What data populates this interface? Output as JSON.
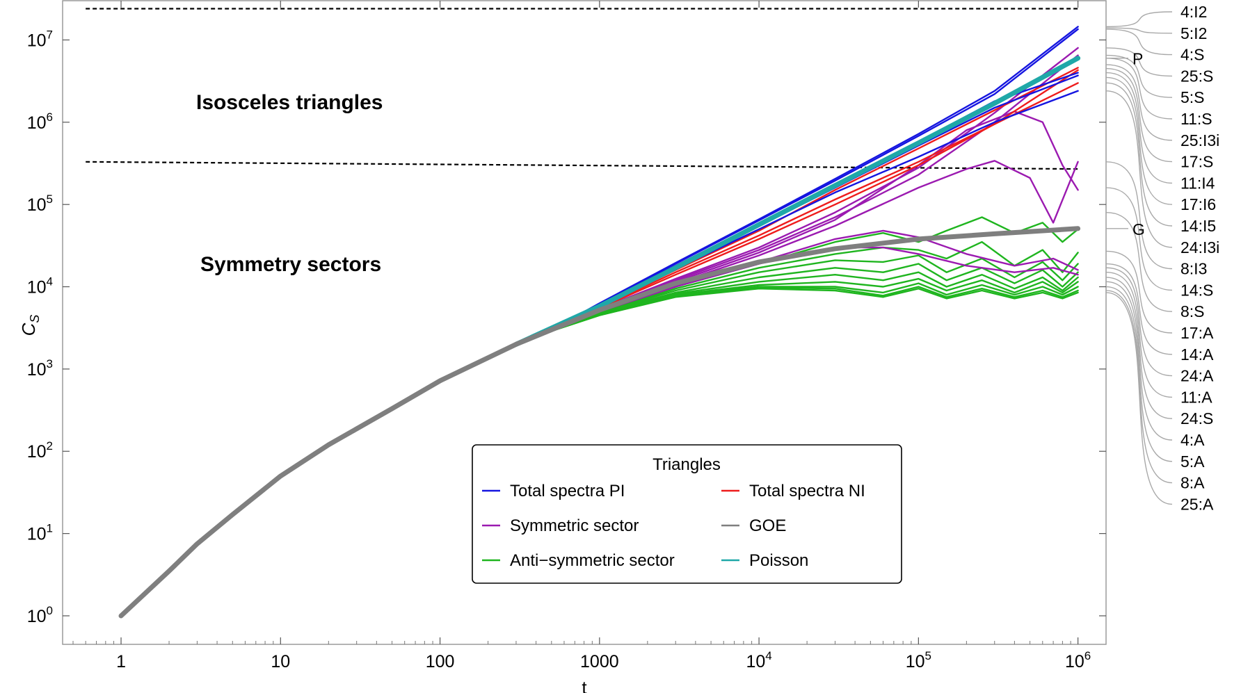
{
  "chart_data": {
    "type": "line",
    "x_scale": "log",
    "y_scale": "log",
    "xlim": [
      0.43,
      1500000
    ],
    "ylim": [
      0.45,
      30000000
    ],
    "xlabel": "t",
    "ylabel": "C",
    "ylabel_subscript": "S",
    "x_ticks": [
      {
        "value": 1,
        "base": "1",
        "sup": ""
      },
      {
        "value": 10,
        "base": "10",
        "sup": ""
      },
      {
        "value": 100,
        "base": "100",
        "sup": ""
      },
      {
        "value": 1000,
        "base": "1000",
        "sup": ""
      },
      {
        "value": 10000,
        "base": "10",
        "sup": "4"
      },
      {
        "value": 100000,
        "base": "10",
        "sup": "5"
      },
      {
        "value": 1000000,
        "base": "10",
        "sup": "6"
      }
    ],
    "y_ticks": [
      {
        "value": 1,
        "base": "10",
        "sup": "0"
      },
      {
        "value": 10,
        "base": "10",
        "sup": "1"
      },
      {
        "value": 100,
        "base": "10",
        "sup": "2"
      },
      {
        "value": 1000,
        "base": "10",
        "sup": "3"
      },
      {
        "value": 10000,
        "base": "10",
        "sup": "4"
      },
      {
        "value": 100000,
        "base": "10",
        "sup": "5"
      },
      {
        "value": 1000000,
        "base": "10",
        "sup": "6"
      },
      {
        "value": 10000000,
        "base": "10",
        "sup": "7"
      }
    ],
    "reference_lines": [
      {
        "y": 24000000,
        "x_from": 0.6,
        "x_to": 1000000,
        "style": "dashed"
      },
      {
        "y": 330000,
        "x_from": 0.6,
        "x_to": 1000000,
        "y_end": 270000,
        "style": "dashed"
      }
    ],
    "region_labels": [
      {
        "text": "Isosceles triangles",
        "x": 0.0,
        "y": 0
      },
      {
        "text": "Symmetry sectors",
        "x": 0.0,
        "y": 0
      }
    ],
    "legend": {
      "title": "Triangles",
      "position": "bottom-center",
      "entries": [
        {
          "label": "Total spectra PI",
          "color": "#1515e0"
        },
        {
          "label": "Total spectra NI",
          "color": "#ee1c1c"
        },
        {
          "label": "Symmetric sector",
          "color": "#9b1ab0"
        },
        {
          "label": "GOE",
          "color": "#7f7f7f"
        },
        {
          "label": "Anti−symmetric sector",
          "color": "#1fb51f"
        },
        {
          "label": "Poisson",
          "color": "#1fa8a8"
        }
      ]
    },
    "series": [
      {
        "group": "GOE",
        "color": "#7f7f7f",
        "width": 7,
        "x": [
          1,
          2,
          3,
          5,
          10,
          20,
          50,
          100,
          300,
          1000,
          3000,
          10000,
          30000,
          100000,
          300000,
          1000000
        ],
        "y": [
          1,
          3.5,
          7.5,
          17,
          50,
          120,
          330,
          720,
          2000,
          5200,
          11000,
          20000,
          29000,
          38000,
          44000,
          51000
        ]
      },
      {
        "group": "Poisson",
        "color": "#1fa8a8",
        "width": 7,
        "x": [
          300,
          1000,
          3000,
          10000,
          30000,
          100000,
          300000,
          1000000
        ],
        "y": [
          2000,
          5800,
          17000,
          57000,
          170000,
          560000,
          1700000,
          6000000
        ]
      },
      {
        "group": "Total spectra PI",
        "label": "4:I2",
        "color": "#1515e0",
        "x": [
          500,
          1000,
          3000,
          10000,
          30000,
          100000,
          300000,
          1000000
        ],
        "y": [
          3000,
          6300,
          19500,
          66000,
          205000,
          720000,
          2400000,
          14500000
        ]
      },
      {
        "group": "Total spectra PI",
        "label": "5:I2",
        "color": "#1515e0",
        "x": [
          500,
          1000,
          3000,
          10000,
          30000,
          100000,
          300000,
          1000000
        ],
        "y": [
          3000,
          6200,
          19000,
          64000,
          195000,
          680000,
          2200000,
          13500000
        ]
      },
      {
        "group": "Total spectra PI",
        "label": "4:S",
        "color": "#1515e0",
        "x": [
          500,
          1000,
          3000,
          10000,
          30000,
          100000,
          300000,
          1000000
        ],
        "y": [
          3000,
          6100,
          18000,
          59000,
          175000,
          580000,
          1800000,
          4000000
        ]
      },
      {
        "group": "Total spectra PI",
        "label": "5:S",
        "color": "#1515e0",
        "x": [
          500,
          1000,
          3000,
          10000,
          30000,
          100000,
          300000,
          1000000
        ],
        "y": [
          3000,
          6000,
          17000,
          55000,
          160000,
          520000,
          1500000,
          3700000
        ]
      },
      {
        "group": "Total spectra PI",
        "label": "11:S",
        "color": "#1515e0",
        "x": [
          500,
          1000,
          3000,
          10000,
          30000,
          100000,
          300000,
          1000000
        ],
        "y": [
          2900,
          5800,
          16500,
          50000,
          140000,
          380000,
          1000000,
          2400000
        ]
      },
      {
        "group": "Total spectra NI",
        "label": "25:I3i",
        "color": "#ee1c1c",
        "x": [
          500,
          1000,
          3000,
          10000,
          30000,
          100000,
          300000,
          1000000
        ],
        "y": [
          2900,
          5700,
          16000,
          48000,
          150000,
          480000,
          1400000,
          4600000
        ]
      },
      {
        "group": "Total spectra NI",
        "label": "17:S",
        "color": "#ee1c1c",
        "x": [
          500,
          1000,
          3000,
          10000,
          30000,
          100000,
          300000,
          1000000
        ],
        "y": [
          2900,
          5600,
          15000,
          42000,
          115000,
          330000,
          950000,
          4300000
        ]
      },
      {
        "group": "Total spectra NI",
        "label": "11:I4",
        "color": "#ee1c1c",
        "x": [
          500,
          1000,
          3000,
          10000,
          30000,
          100000,
          300000,
          1000000
        ],
        "y": [
          2900,
          5500,
          14000,
          38000,
          100000,
          300000,
          950000,
          3000000
        ]
      },
      {
        "group": "Symmetric sector",
        "label": "17:I6",
        "color": "#9b1ab0",
        "x": [
          500,
          1000,
          3000,
          10000,
          30000,
          100000,
          300000,
          1000000
        ],
        "y": [
          2900,
          5400,
          12500,
          30000,
          80000,
          280000,
          1300000,
          8000000
        ]
      },
      {
        "group": "Symmetric sector",
        "label": "14:I5",
        "color": "#9b1ab0",
        "x": [
          500,
          1000,
          3000,
          10000,
          30000,
          100000,
          300000,
          1000000
        ],
        "y": [
          2900,
          5300,
          12000,
          28000,
          70000,
          230000,
          1000000,
          6500000
        ]
      },
      {
        "group": "Symmetric sector",
        "label": "24:I3i",
        "color": "#9b1ab0",
        "x": [
          500,
          1000,
          3000,
          10000,
          30000,
          100000,
          200000,
          400000,
          600000,
          800000,
          1000000
        ],
        "y": [
          2900,
          5200,
          11500,
          26000,
          65000,
          300000,
          800000,
          1350000,
          1000000,
          300000,
          150000
        ]
      },
      {
        "group": "Symmetric sector",
        "label": "8:I3",
        "color": "#9b1ab0",
        "x": [
          500,
          1000,
          3000,
          10000,
          30000,
          100000,
          200000,
          300000,
          500000,
          700000,
          1000000
        ],
        "y": [
          2900,
          5100,
          11000,
          24000,
          55000,
          160000,
          270000,
          340000,
          210000,
          60000,
          330000
        ]
      },
      {
        "group": "Symmetric sector",
        "label": "14:S",
        "color": "#9b1ab0",
        "x": [
          500,
          1000,
          3000,
          10000,
          30000,
          60000,
          100000,
          200000,
          400000,
          700000,
          1000000
        ],
        "y": [
          2900,
          5000,
          10500,
          20000,
          38000,
          48000,
          40000,
          25000,
          18000,
          22000,
          16000
        ]
      },
      {
        "group": "Symmetric sector",
        "label": "8:S",
        "color": "#9b1ab0",
        "x": [
          500,
          1000,
          3000,
          10000,
          30000,
          60000,
          100000,
          200000,
          400000,
          700000,
          1000000
        ],
        "y": [
          2900,
          5000,
          10000,
          19000,
          30000,
          30000,
          25000,
          18000,
          15000,
          17000,
          14000
        ]
      },
      {
        "group": "Anti-symmetric sector",
        "label": "17:A",
        "color": "#1fb51f",
        "x": [
          500,
          1000,
          3000,
          10000,
          30000,
          60000,
          100000,
          150000,
          250000,
          400000,
          600000,
          800000,
          1000000
        ],
        "y": [
          2900,
          4900,
          10000,
          19000,
          35000,
          45000,
          35000,
          48000,
          70000,
          45000,
          60000,
          35000,
          50000
        ]
      },
      {
        "group": "Anti-symmetric sector",
        "label": "14:A",
        "color": "#1fb51f",
        "x": [
          500,
          1000,
          3000,
          10000,
          30000,
          60000,
          100000,
          150000,
          250000,
          400000,
          600000,
          800000,
          1000000
        ],
        "y": [
          2900,
          4800,
          9500,
          17000,
          25000,
          30000,
          28000,
          22000,
          35000,
          18000,
          28000,
          15000,
          26000
        ]
      },
      {
        "group": "Anti-symmetric sector",
        "label": "24:A",
        "color": "#1fb51f",
        "x": [
          500,
          1000,
          3000,
          10000,
          30000,
          60000,
          100000,
          150000,
          250000,
          400000,
          600000,
          800000,
          1000000
        ],
        "y": [
          2900,
          4800,
          9000,
          15000,
          21000,
          20000,
          24000,
          15000,
          22000,
          13000,
          20000,
          12000,
          19000
        ]
      },
      {
        "group": "Anti-symmetric sector",
        "label": "11:A",
        "color": "#1fb51f",
        "x": [
          500,
          1000,
          3000,
          10000,
          30000,
          60000,
          100000,
          150000,
          250000,
          400000,
          600000,
          800000,
          1000000
        ],
        "y": [
          2900,
          4700,
          8500,
          13000,
          17000,
          15000,
          19000,
          12000,
          17000,
          11000,
          16000,
          10000,
          15000
        ]
      },
      {
        "group": "Anti-symmetric sector",
        "label": "24:S",
        "color": "#1fb51f",
        "x": [
          500,
          1000,
          3000,
          10000,
          30000,
          60000,
          100000,
          150000,
          250000,
          400000,
          600000,
          800000,
          1000000
        ],
        "y": [
          2900,
          4700,
          8200,
          11500,
          14000,
          12000,
          15000,
          10000,
          14000,
          9500,
          13000,
          9000,
          13000
        ]
      },
      {
        "group": "Anti-symmetric sector",
        "label": "4:A",
        "color": "#1fb51f",
        "x": [
          500,
          1000,
          3000,
          10000,
          30000,
          60000,
          100000,
          150000,
          250000,
          400000,
          600000,
          800000,
          1000000
        ],
        "y": [
          2900,
          4600,
          8000,
          10500,
          11500,
          10000,
          12500,
          9000,
          12000,
          8500,
          11500,
          8500,
          11500
        ]
      },
      {
        "group": "Anti-symmetric sector",
        "label": "5:A",
        "color": "#1fb51f",
        "x": [
          500,
          1000,
          3000,
          10000,
          30000,
          60000,
          100000,
          150000,
          250000,
          400000,
          600000,
          800000,
          1000000
        ],
        "y": [
          2900,
          4600,
          7800,
          10000,
          10000,
          8500,
          11000,
          8000,
          10500,
          8000,
          10000,
          8000,
          10000
        ]
      },
      {
        "group": "Anti-symmetric sector",
        "label": "8:A",
        "color": "#1fb51f",
        "x": [
          500,
          1000,
          3000,
          10000,
          30000,
          60000,
          100000,
          150000,
          250000,
          400000,
          600000,
          800000,
          1000000
        ],
        "y": [
          2900,
          4500,
          7600,
          9800,
          9500,
          7800,
          10000,
          7500,
          9500,
          7500,
          9000,
          7500,
          9000
        ]
      },
      {
        "group": "Anti-symmetric sector",
        "label": "25:A",
        "color": "#1fb51f",
        "x": [
          500,
          1000,
          3000,
          10000,
          30000,
          60000,
          100000,
          150000,
          250000,
          400000,
          600000,
          800000,
          1000000
        ],
        "y": [
          2900,
          4500,
          7500,
          9500,
          9000,
          7500,
          9500,
          7200,
          9000,
          7200,
          8500,
          7200,
          8500
        ]
      }
    ],
    "callouts": [
      {
        "text": "4:I2",
        "y_end": 14500000
      },
      {
        "text": "5:I2",
        "y_end": 14000000
      },
      {
        "text": "4:S",
        "y_end": 13500000
      },
      {
        "text": "25:S",
        "y_end": 8000000
      },
      {
        "text": "5:S",
        "y_end": 6500000
      },
      {
        "text": "11:S",
        "y_end": 6000000
      },
      {
        "text": "25:I3i",
        "y_end": 5000000
      },
      {
        "text": "17:S",
        "y_end": 4500000
      },
      {
        "text": "11:I4",
        "y_end": 4000000
      },
      {
        "text": "17:I6",
        "y_end": 3500000
      },
      {
        "text": "14:I5",
        "y_end": 3000000
      },
      {
        "text": "24:I3i",
        "y_end": 2400000
      },
      {
        "text": "8:I3",
        "y_end": 330000
      },
      {
        "text": "14:S",
        "y_end": 160000
      },
      {
        "text": "8:S",
        "y_end": 80000
      },
      {
        "text": "17:A",
        "y_end": 27000
      },
      {
        "text": "14:A",
        "y_end": 19000
      },
      {
        "text": "24:A",
        "y_end": 17000
      },
      {
        "text": "11:A",
        "y_end": 15000
      },
      {
        "text": "24:S",
        "y_end": 13000
      },
      {
        "text": "4:A",
        "y_end": 11500
      },
      {
        "text": "5:A",
        "y_end": 10000
      },
      {
        "text": "8:A",
        "y_end": 9000
      },
      {
        "text": "25:A",
        "y_end": 8500
      }
    ],
    "marker_labels": [
      {
        "text": "P",
        "y": 6000000
      },
      {
        "text": "G",
        "y": 51000
      }
    ]
  },
  "texts": {
    "region_top": "Isosceles triangles",
    "region_bottom": "Symmetry sectors"
  }
}
